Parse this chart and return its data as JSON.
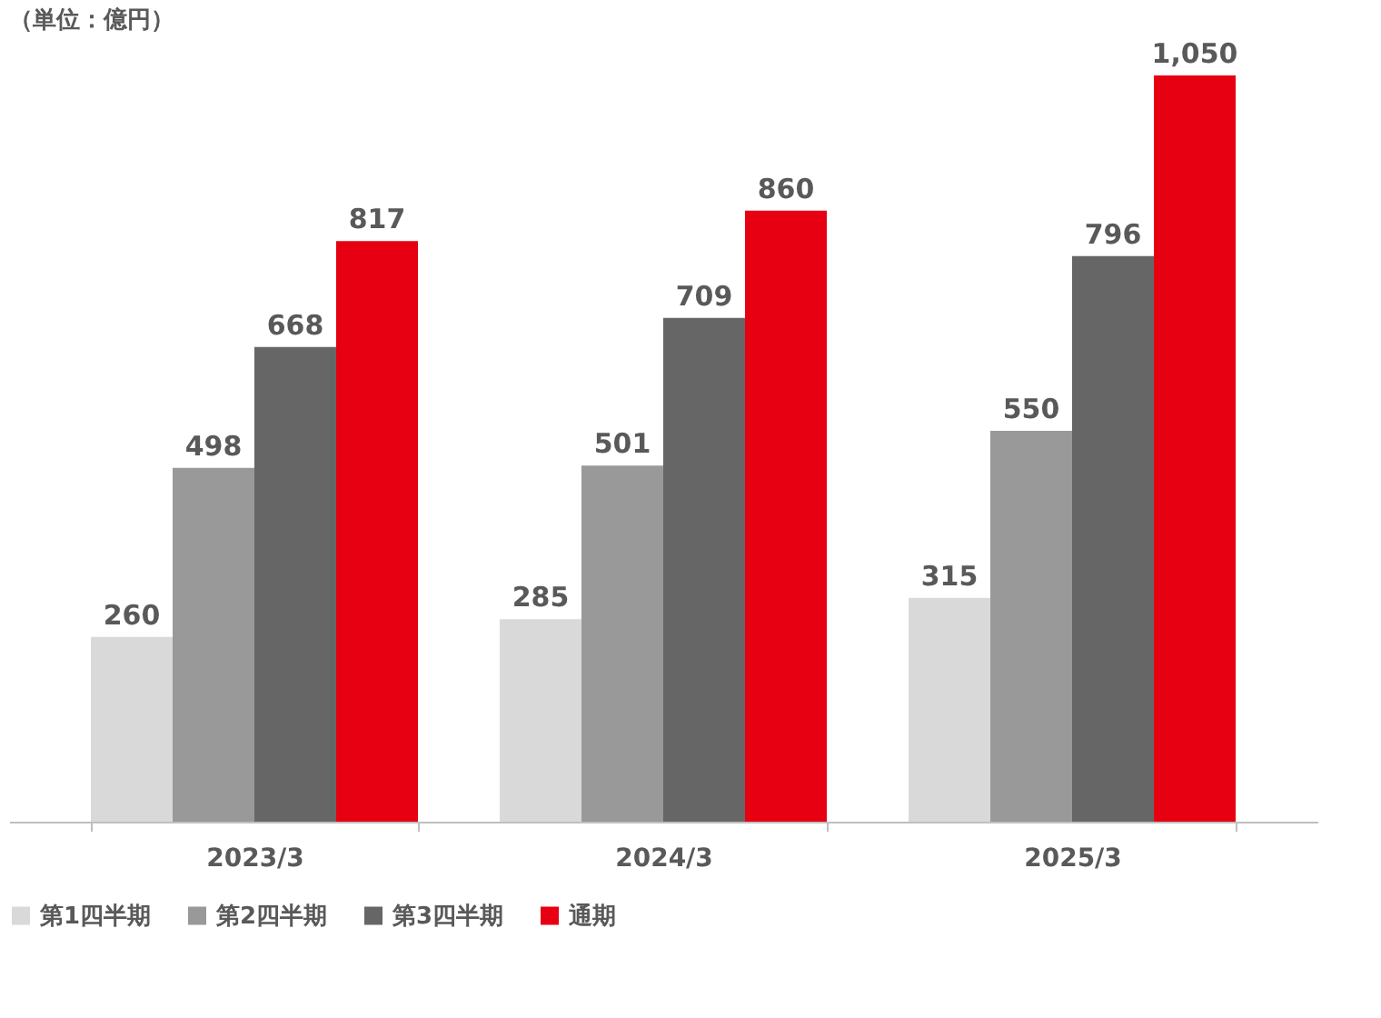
{
  "chart_data": {
    "type": "bar",
    "title": "（単位：億円）",
    "categories": [
      "2023/3",
      "2024/3",
      "2025/3"
    ],
    "series": [
      {
        "name": "第1四半期",
        "color": "#d9d9d9",
        "values": [
          260,
          285,
          315
        ],
        "value_labels": [
          "260",
          "285",
          "315"
        ]
      },
      {
        "name": "第2四半期",
        "color": "#999999",
        "values": [
          498,
          501,
          550
        ],
        "value_labels": [
          "498",
          "501",
          "550"
        ]
      },
      {
        "name": "第3四半期",
        "color": "#666666",
        "values": [
          668,
          709,
          796
        ],
        "value_labels": [
          "668",
          "709",
          "796"
        ]
      },
      {
        "name": "通期",
        "color": "#e60012",
        "values": [
          817,
          860,
          1050
        ],
        "value_labels": [
          "817",
          "860",
          "1,050"
        ]
      }
    ],
    "legend": "bottom",
    "grid": false,
    "tick_labels": "x"
  }
}
